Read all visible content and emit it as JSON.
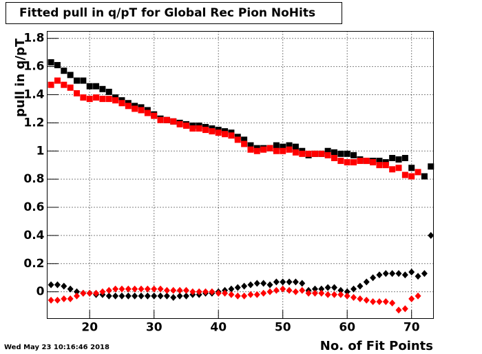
{
  "chart_data": {
    "type": "scatter",
    "title": "Fitted pull in q/pT for Global Rec Pion NoHits",
    "x_label": "No. of Fit Points",
    "y_label": "pull in q/pT",
    "timestamp": "Wed May 23 10:16:46 2018",
    "xlim": [
      13.4,
      73.4
    ],
    "ylim": [
      -0.19,
      1.85
    ],
    "xticks": [
      20,
      30,
      40,
      50,
      60,
      70
    ],
    "yticks": [
      0,
      0.2,
      0.4,
      0.6,
      0.8,
      1,
      1.2,
      1.4,
      1.6,
      1.8
    ],
    "grid": true,
    "x": [
      14,
      15,
      16,
      17,
      18,
      19,
      20,
      21,
      22,
      23,
      24,
      25,
      26,
      27,
      28,
      29,
      30,
      31,
      32,
      33,
      34,
      35,
      36,
      37,
      38,
      39,
      40,
      41,
      42,
      43,
      44,
      45,
      46,
      47,
      48,
      49,
      50,
      51,
      52,
      53,
      54,
      55,
      56,
      57,
      58,
      59,
      60,
      61,
      62,
      63,
      64,
      65,
      66,
      67,
      68,
      69,
      70,
      71,
      72,
      73
    ],
    "series": [
      {
        "color": "#000000",
        "marker": "square",
        "values": [
          1.63,
          1.61,
          1.57,
          1.54,
          1.5,
          1.5,
          1.46,
          1.46,
          1.44,
          1.42,
          1.38,
          1.36,
          1.34,
          1.32,
          1.31,
          1.29,
          1.26,
          1.23,
          1.22,
          1.21,
          1.2,
          1.19,
          1.18,
          1.18,
          1.17,
          1.16,
          1.15,
          1.14,
          1.13,
          1.1,
          1.08,
          1.04,
          1.02,
          1.02,
          1.02,
          1.04,
          1.03,
          1.04,
          1.03,
          1.0,
          0.97,
          0.98,
          0.98,
          1.0,
          0.99,
          0.98,
          0.98,
          0.97,
          0.94,
          0.93,
          0.93,
          0.93,
          0.92,
          0.95,
          0.94,
          0.95,
          0.88,
          null,
          0.82,
          0.89
        ]
      },
      {
        "color": "#ff0000",
        "marker": "square",
        "values": [
          1.47,
          1.5,
          1.47,
          1.45,
          1.41,
          1.38,
          1.37,
          1.38,
          1.37,
          1.37,
          1.36,
          1.34,
          1.32,
          1.3,
          1.29,
          1.27,
          1.25,
          1.22,
          1.22,
          1.21,
          1.19,
          1.18,
          1.16,
          1.16,
          1.15,
          1.14,
          1.13,
          1.12,
          1.11,
          1.08,
          1.05,
          1.01,
          1.0,
          1.01,
          1.02,
          1.0,
          1.0,
          1.01,
          0.99,
          0.98,
          0.98,
          0.98,
          0.98,
          0.97,
          0.95,
          0.93,
          0.92,
          0.92,
          0.93,
          0.93,
          0.92,
          0.9,
          0.9,
          0.87,
          0.88,
          0.83,
          0.82,
          0.85,
          null,
          null
        ]
      },
      {
        "color": "#000000",
        "marker": "diamond",
        "values": [
          0.05,
          0.05,
          0.04,
          0.02,
          0.0,
          -0.01,
          -0.01,
          -0.02,
          -0.02,
          -0.03,
          -0.03,
          -0.03,
          -0.03,
          -0.03,
          -0.03,
          -0.03,
          -0.03,
          -0.03,
          -0.03,
          -0.04,
          -0.03,
          -0.03,
          -0.02,
          -0.02,
          -0.01,
          -0.01,
          0.0,
          0.01,
          0.02,
          0.03,
          0.04,
          0.05,
          0.06,
          0.06,
          0.05,
          0.07,
          0.07,
          0.07,
          0.07,
          0.06,
          0.01,
          0.02,
          0.02,
          0.03,
          0.03,
          0.01,
          0.0,
          0.02,
          0.04,
          0.07,
          0.1,
          0.12,
          0.13,
          0.13,
          0.13,
          0.12,
          0.14,
          0.11,
          0.13,
          0.4
        ]
      },
      {
        "color": "#ff0000",
        "marker": "diamond",
        "values": [
          -0.06,
          -0.06,
          -0.05,
          -0.05,
          -0.03,
          -0.01,
          -0.01,
          -0.01,
          0.0,
          0.01,
          0.02,
          0.02,
          0.02,
          0.02,
          0.02,
          0.02,
          0.02,
          0.02,
          0.01,
          0.01,
          0.01,
          0.01,
          0.0,
          0.0,
          0.0,
          0.0,
          -0.01,
          -0.01,
          -0.02,
          -0.03,
          -0.03,
          -0.02,
          -0.02,
          -0.01,
          0.0,
          0.01,
          0.02,
          0.01,
          0.0,
          0.01,
          -0.01,
          -0.01,
          -0.01,
          -0.02,
          -0.02,
          -0.02,
          -0.03,
          -0.04,
          -0.05,
          -0.06,
          -0.07,
          -0.07,
          -0.07,
          -0.08,
          -0.13,
          -0.12,
          -0.05,
          -0.03,
          null,
          null
        ]
      }
    ]
  }
}
